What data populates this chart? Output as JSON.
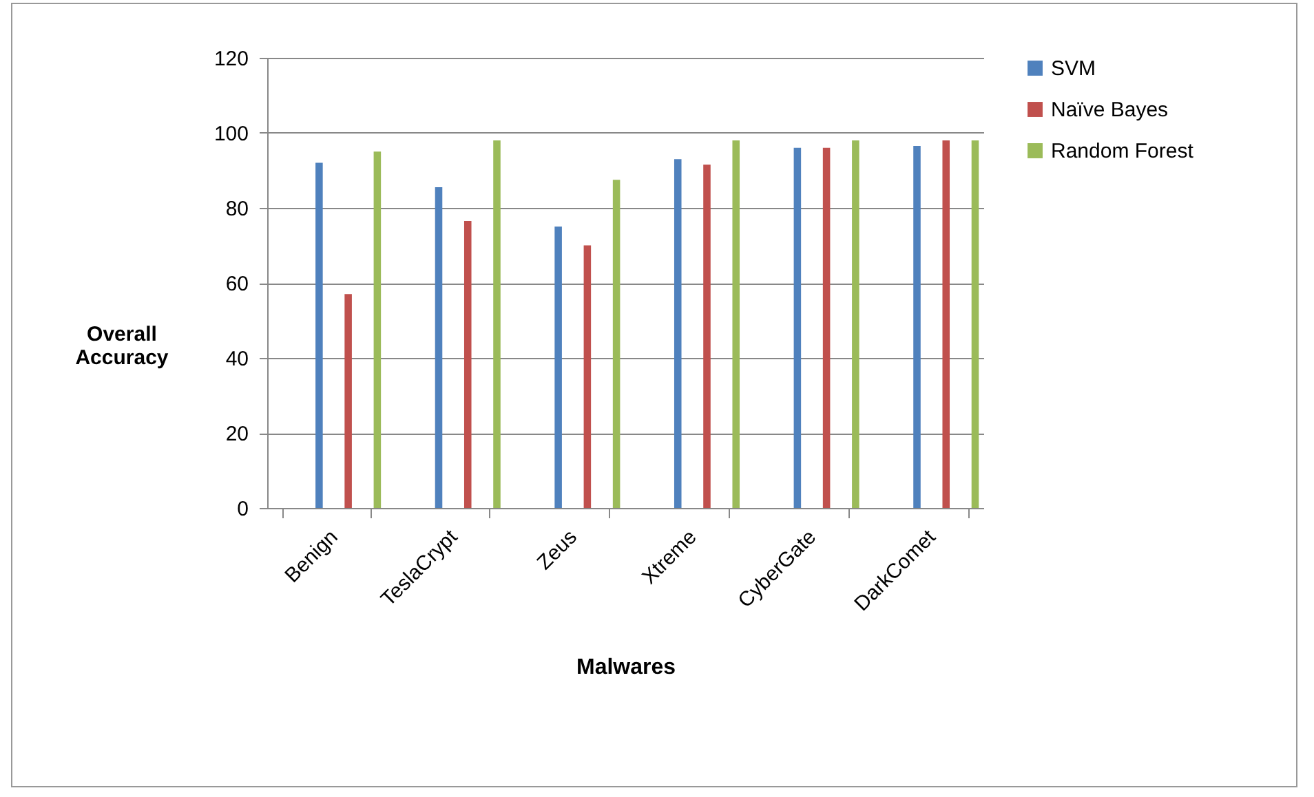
{
  "chart_data": {
    "type": "bar",
    "xlabel": "Malwares",
    "ylabel": "Overall Accuracy",
    "categories": [
      "Benign",
      "TeslaCrypt",
      "Zeus",
      "Xtreme",
      "CyberGate",
      "DarkComet"
    ],
    "series": [
      {
        "name": "SVM",
        "color": "#4f81bd",
        "values": [
          92,
          85.5,
          75,
          93,
          96,
          96.5
        ]
      },
      {
        "name": "Naïve Bayes",
        "color": "#c0504d",
        "values": [
          57,
          76.5,
          70,
          91.5,
          96,
          98
        ]
      },
      {
        "name": "Random Forest",
        "color": "#9bbb59",
        "values": [
          95,
          98,
          87.5,
          98,
          98,
          98
        ]
      }
    ],
    "ylim": [
      0,
      120
    ],
    "yticks": [
      0,
      20,
      40,
      60,
      80,
      100,
      120
    ],
    "grid": "y",
    "legend": "right"
  }
}
